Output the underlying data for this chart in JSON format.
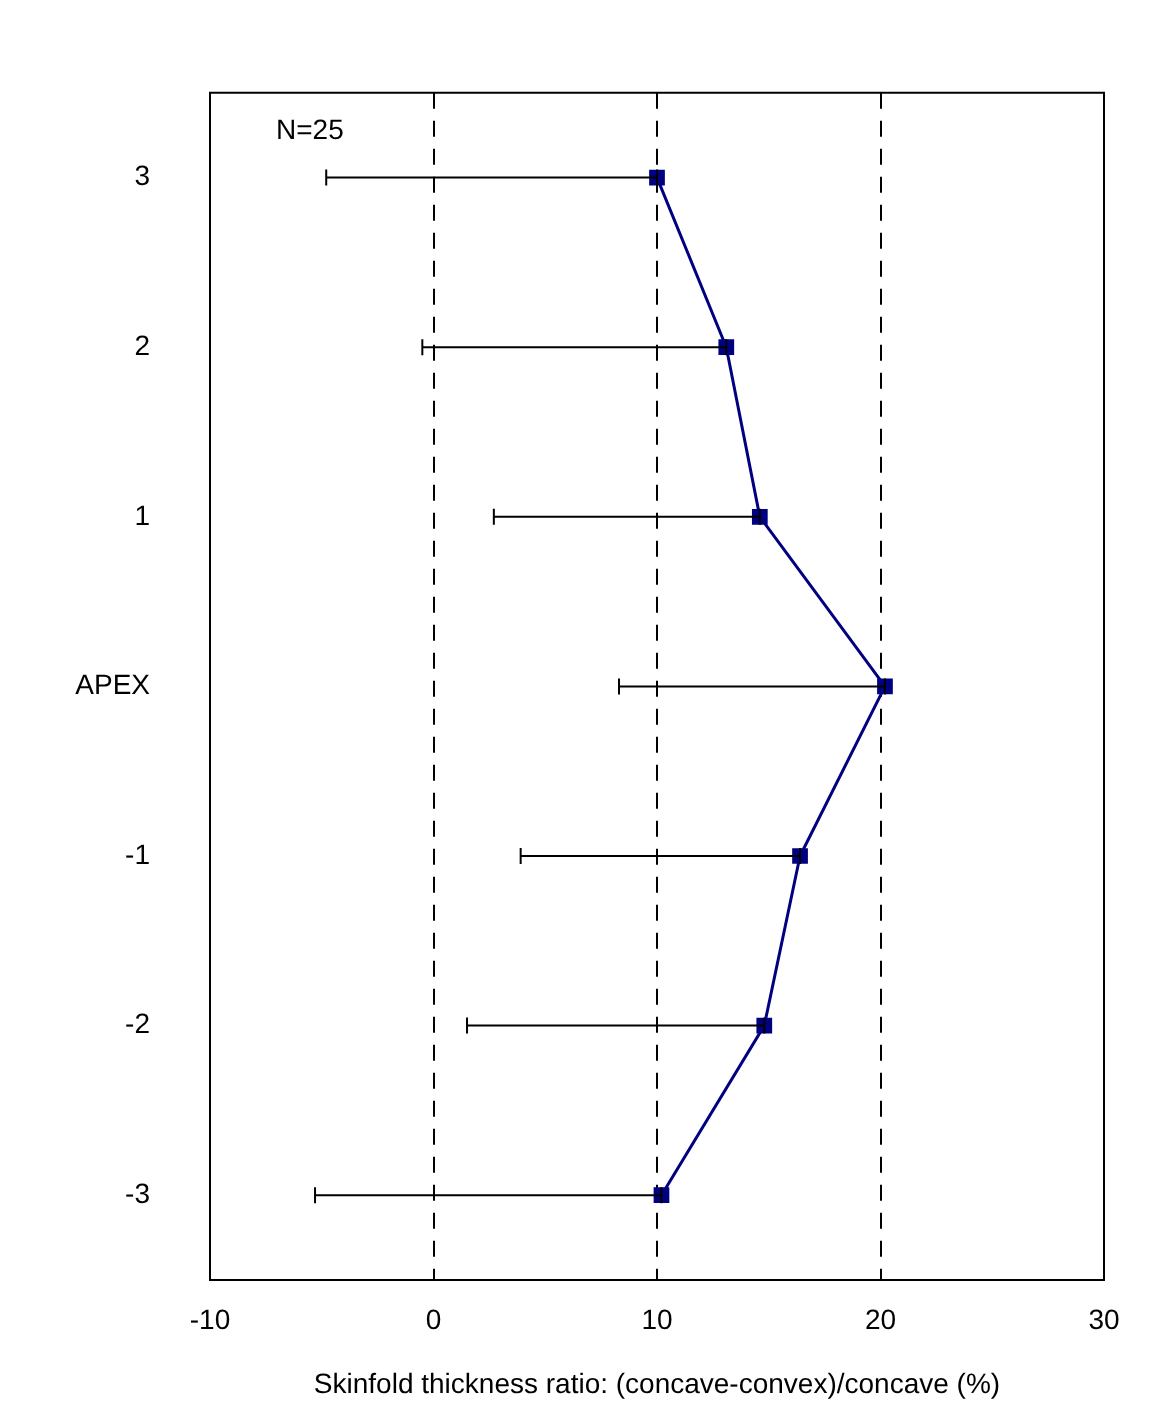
{
  "chart_data": {
    "type": "line",
    "orientation": "horizontal",
    "xlabel": "Skinfold thickness ratio: (concave-convex)/concave (%)",
    "annotations": [
      "N=25"
    ],
    "categories": [
      "3",
      "2",
      "1",
      "APEX",
      "-1",
      "-2",
      "-3"
    ],
    "series": [
      {
        "color": "#000080",
        "values": [
          10.0,
          13.1,
          14.6,
          20.2,
          16.4,
          14.8,
          10.2
        ],
        "errors": [
          [
            -4.8,
            10.0
          ],
          [
            -0.5,
            13.1
          ],
          [
            2.7,
            14.6
          ],
          [
            8.3,
            20.2
          ],
          [
            3.9,
            16.4
          ],
          [
            1.5,
            14.8
          ],
          [
            -5.3,
            10.2
          ]
        ]
      }
    ],
    "xlim": [
      -10,
      30
    ],
    "xticks": [
      -10,
      0,
      10,
      20,
      30
    ],
    "grid": "x",
    "legend": false,
    "marker": "square",
    "line_style": "solid"
  }
}
